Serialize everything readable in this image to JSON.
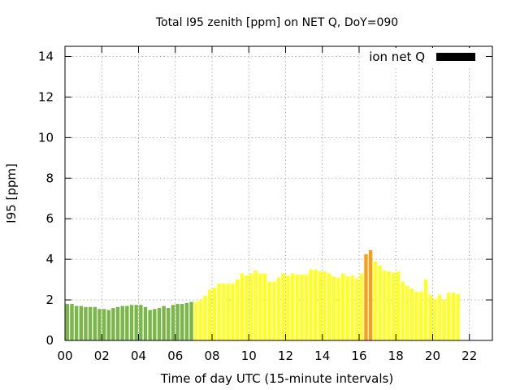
{
  "chart_data": {
    "type": "bar",
    "title": "Total I95 zenith [ppm] on NET Q, DoY=090",
    "xlabel": "Time of day UTC (15-minute intervals)",
    "ylabel": "I95 [ppm]",
    "xlim": [
      0,
      23.25
    ],
    "ylim": [
      0,
      14.5
    ],
    "grid": true,
    "legend_position": "top-right",
    "x_ticks": [
      "00",
      "02",
      "04",
      "06",
      "08",
      "10",
      "12",
      "14",
      "16",
      "18",
      "20",
      "22"
    ],
    "y_ticks": [
      "0",
      "2",
      "4",
      "6",
      "8",
      "10",
      "12",
      "14"
    ],
    "colors": {
      "green": "#7ab648",
      "yellow": "#ffff22",
      "orange": "#f5a01a",
      "legend_swatch": "#000000"
    },
    "series": [
      {
        "name": "ion net Q",
        "interval_hours": 0.25,
        "values": [
          1.8,
          1.8,
          1.7,
          1.7,
          1.65,
          1.65,
          1.65,
          1.55,
          1.55,
          1.5,
          1.6,
          1.65,
          1.7,
          1.7,
          1.75,
          1.75,
          1.75,
          1.65,
          1.5,
          1.55,
          1.6,
          1.7,
          1.6,
          1.75,
          1.8,
          1.8,
          1.85,
          1.9,
          1.9,
          2.0,
          2.2,
          2.5,
          2.6,
          2.8,
          2.8,
          2.8,
          2.8,
          3.0,
          3.3,
          3.2,
          3.3,
          3.45,
          3.3,
          3.3,
          2.9,
          2.9,
          3.1,
          3.3,
          3.2,
          3.3,
          3.25,
          3.25,
          3.25,
          3.5,
          3.5,
          3.4,
          3.4,
          3.3,
          3.15,
          3.1,
          3.3,
          3.15,
          3.2,
          3.05,
          3.3,
          4.25,
          4.45,
          3.9,
          3.7,
          3.45,
          3.4,
          3.35,
          3.4,
          2.9,
          2.7,
          2.55,
          2.4,
          2.4,
          3.0,
          2.25,
          2.05,
          2.25,
          2.0,
          2.35,
          2.35,
          2.3
        ],
        "colors_per_bar": [
          "green",
          "green",
          "green",
          "green",
          "green",
          "green",
          "green",
          "green",
          "green",
          "green",
          "green",
          "green",
          "green",
          "green",
          "green",
          "green",
          "green",
          "green",
          "green",
          "green",
          "green",
          "green",
          "green",
          "green",
          "green",
          "green",
          "green",
          "green",
          "yellow",
          "yellow",
          "yellow",
          "yellow",
          "yellow",
          "yellow",
          "yellow",
          "yellow",
          "yellow",
          "yellow",
          "yellow",
          "yellow",
          "yellow",
          "yellow",
          "yellow",
          "yellow",
          "yellow",
          "yellow",
          "yellow",
          "yellow",
          "yellow",
          "yellow",
          "yellow",
          "yellow",
          "yellow",
          "yellow",
          "yellow",
          "yellow",
          "yellow",
          "yellow",
          "yellow",
          "yellow",
          "yellow",
          "yellow",
          "yellow",
          "yellow",
          "yellow",
          "orange",
          "orange",
          "yellow",
          "yellow",
          "yellow",
          "yellow",
          "yellow",
          "yellow",
          "yellow",
          "yellow",
          "yellow",
          "yellow",
          "yellow",
          "yellow",
          "yellow",
          "yellow",
          "yellow",
          "yellow",
          "yellow",
          "yellow",
          "yellow"
        ]
      }
    ]
  }
}
